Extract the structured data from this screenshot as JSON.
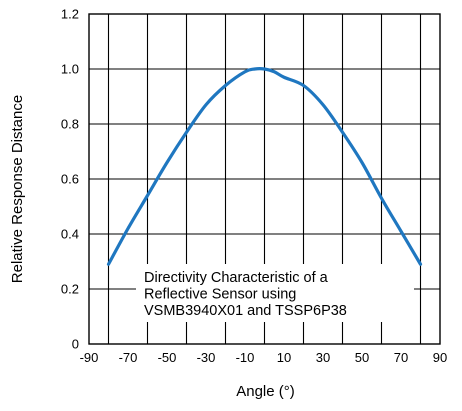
{
  "chart_data": {
    "type": "line",
    "title": "",
    "xlabel": "Angle (°)",
    "ylabel": "Relative Response Distance",
    "xlim": [
      -90,
      90
    ],
    "ylim": [
      0,
      1.2
    ],
    "x_ticks": [
      -90,
      -70,
      -50,
      -30,
      -10,
      10,
      30,
      50,
      70,
      90
    ],
    "x_tick_labels": [
      "-90",
      "-70",
      "-50",
      "-30",
      "-10",
      "10",
      "30",
      "50",
      "70",
      "90"
    ],
    "y_ticks": [
      0,
      0.2,
      0.4,
      0.6,
      0.8,
      1.0,
      1.2
    ],
    "y_tick_labels": [
      "0",
      "0.2",
      "0.4",
      "0.6",
      "0.8",
      "1.0",
      "1.2"
    ],
    "x_gridlines": [
      -80,
      -60,
      -40,
      -20,
      0,
      20,
      40,
      60,
      80
    ],
    "grid": true,
    "series": [
      {
        "color": "#1f77c0",
        "x": [
          -80,
          -70,
          -60,
          -50,
          -40,
          -30,
          -20,
          -10,
          -5,
          0,
          5,
          10,
          20,
          30,
          40,
          50,
          60,
          70,
          80
        ],
        "y": [
          0.29,
          0.42,
          0.54,
          0.66,
          0.77,
          0.87,
          0.94,
          0.99,
          1.0,
          1.0,
          0.99,
          0.97,
          0.94,
          0.87,
          0.77,
          0.66,
          0.53,
          0.41,
          0.29
        ]
      }
    ],
    "annotation": {
      "lines": [
        "Directivity Characteristic of a",
        "Reflective Sensor using",
        "VSMB3940X01 and TSSP6P38"
      ]
    }
  }
}
